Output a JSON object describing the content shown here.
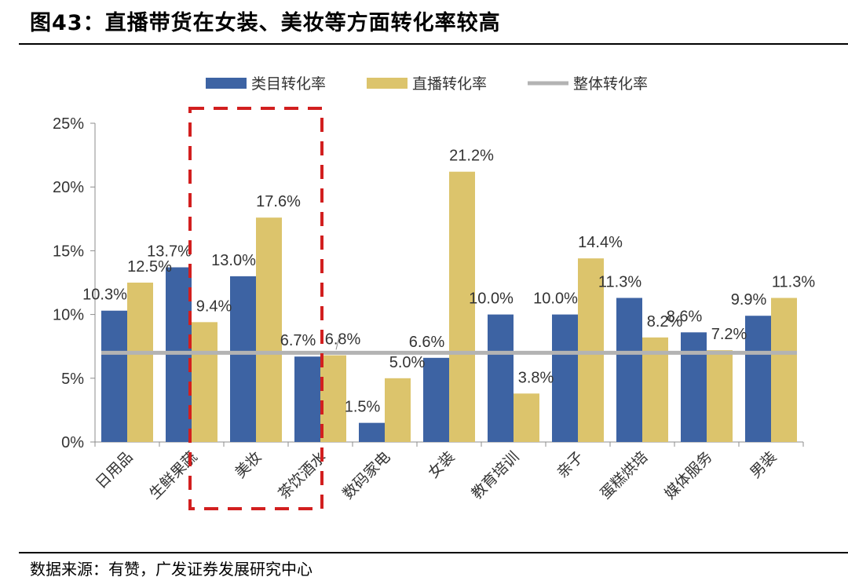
{
  "title": "图43：直播带货在女装、美妆等方面转化率较高",
  "source": "数据来源：有赞，广发证券发展研究中心",
  "chart_data": {
    "type": "bar",
    "categories": [
      "日用品",
      "生鲜果蔬",
      "美妆",
      "茶饮酒水",
      "数码家电",
      "女装",
      "教育培训",
      "亲子",
      "蛋糕烘培",
      "媒体服务",
      "男装"
    ],
    "series": [
      {
        "name": "类目转化率",
        "values": [
          10.3,
          13.7,
          13.0,
          6.7,
          1.5,
          6.6,
          10.0,
          10.0,
          11.3,
          8.6,
          9.9
        ],
        "color": "#3d63a3"
      },
      {
        "name": "直播转化率",
        "values": [
          12.5,
          9.4,
          17.6,
          6.8,
          5.0,
          21.2,
          3.8,
          14.4,
          8.2,
          7.2,
          11.3
        ],
        "color": "#dcc46c"
      }
    ],
    "reference_line": {
      "name": "整体转化率",
      "value": 7.0,
      "color": "#b3b3b3"
    },
    "ylim": [
      0,
      25
    ],
    "yticks": [
      0,
      5,
      10,
      15,
      20,
      25
    ],
    "ytick_labels": [
      "0%",
      "5%",
      "10%",
      "15%",
      "20%",
      "25%"
    ],
    "highlight_category": "美妆",
    "highlight_color": "#d21f1f",
    "legend_position": "top-center",
    "xlabel": "",
    "ylabel": ""
  }
}
